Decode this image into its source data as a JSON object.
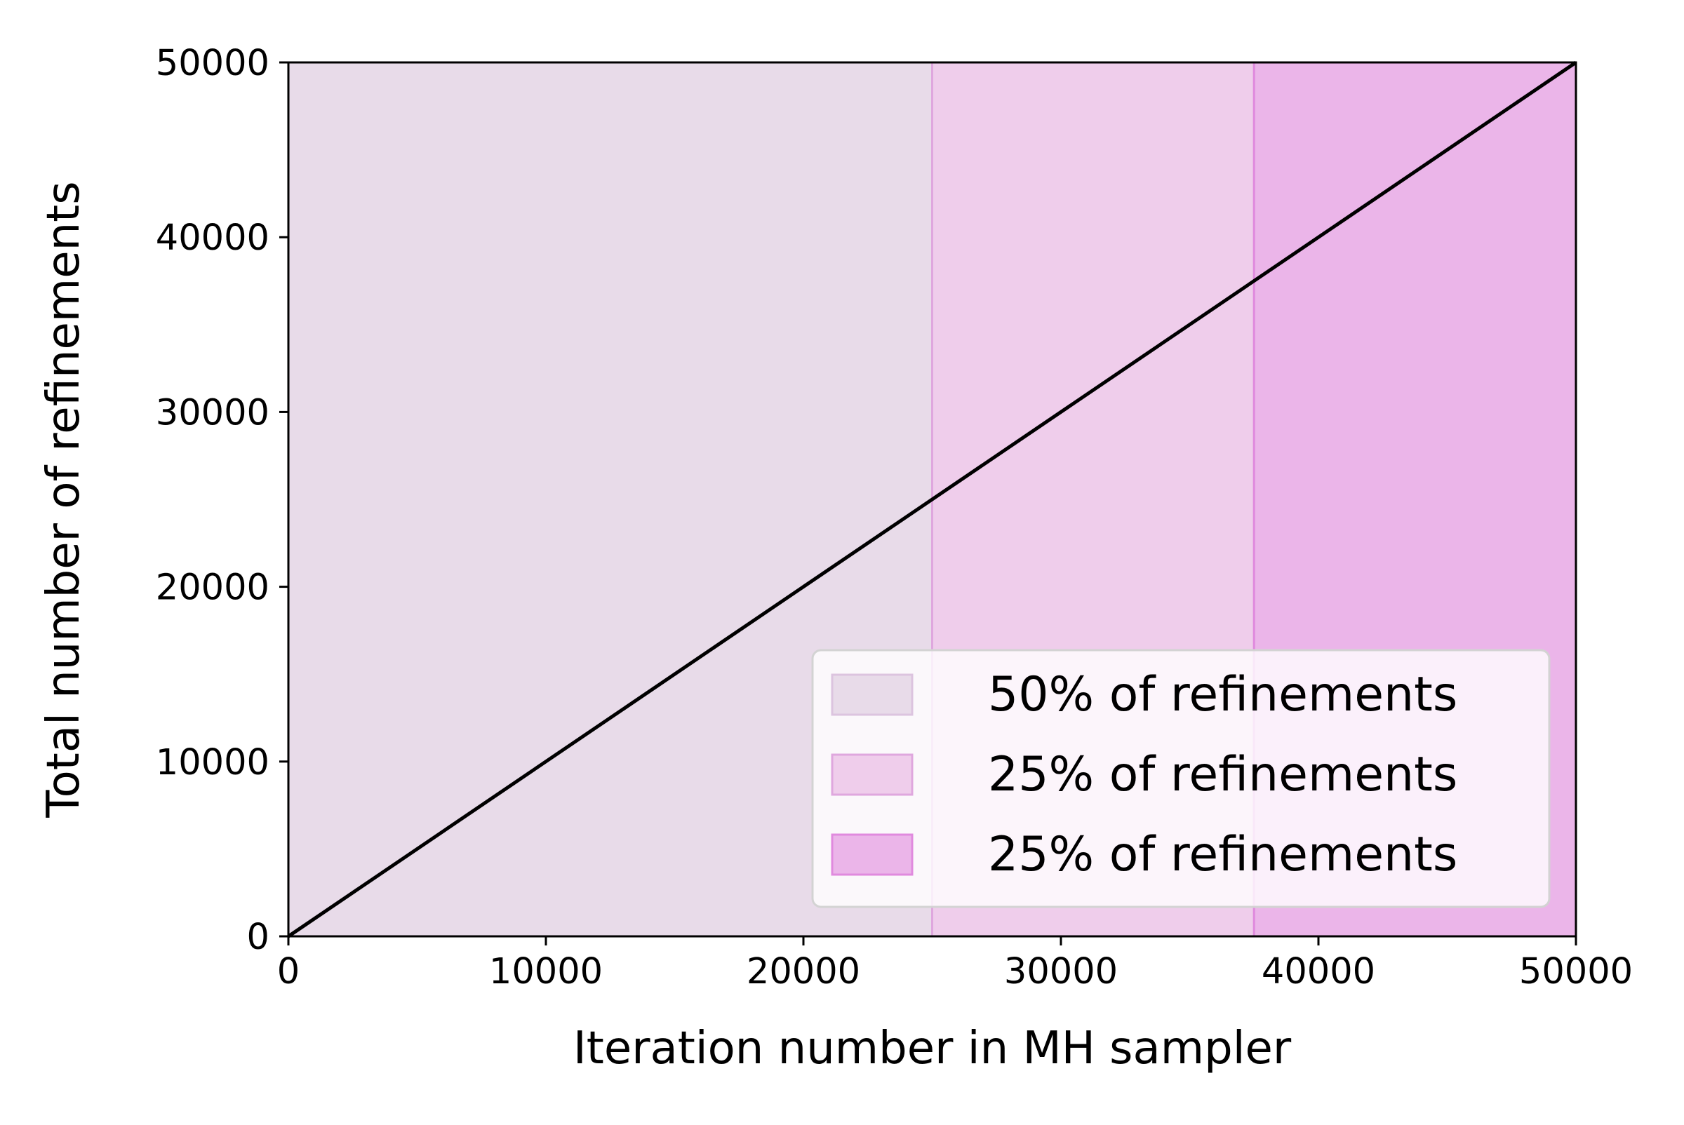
{
  "chart_data": {
    "type": "area",
    "title": "",
    "xlabel": "Iteration number in MH sampler",
    "ylabel": "Total number of refinements",
    "xlim": [
      0,
      50000
    ],
    "ylim": [
      0,
      50000
    ],
    "xticks": [
      0,
      10000,
      20000,
      30000,
      40000,
      50000
    ],
    "yticks": [
      0,
      10000,
      20000,
      30000,
      40000,
      50000
    ],
    "xtick_labels": [
      "0",
      "10000",
      "20000",
      "30000",
      "40000",
      "50000"
    ],
    "ytick_labels": [
      "0",
      "10000",
      "20000",
      "30000",
      "40000",
      "50000"
    ],
    "grid": false,
    "legend_position": "lower right",
    "series": [
      {
        "type": "line",
        "x": [
          0,
          50000
        ],
        "y": [
          0,
          50000
        ],
        "color": "#000000"
      }
    ],
    "bands": [
      {
        "label": "50% of refinements",
        "x_start": 0,
        "x_end": 25000,
        "fill": "#e8dbe9",
        "edge": "#dcc4df"
      },
      {
        "label": "25% of refinements",
        "x_start": 25000,
        "x_end": 37500,
        "fill": "#efcdeb",
        "edge": "#dfa7de"
      },
      {
        "label": "25% of refinements",
        "x_start": 37500,
        "x_end": 50000,
        "fill": "#ebb5e9",
        "edge": "#e08ade"
      }
    ]
  }
}
